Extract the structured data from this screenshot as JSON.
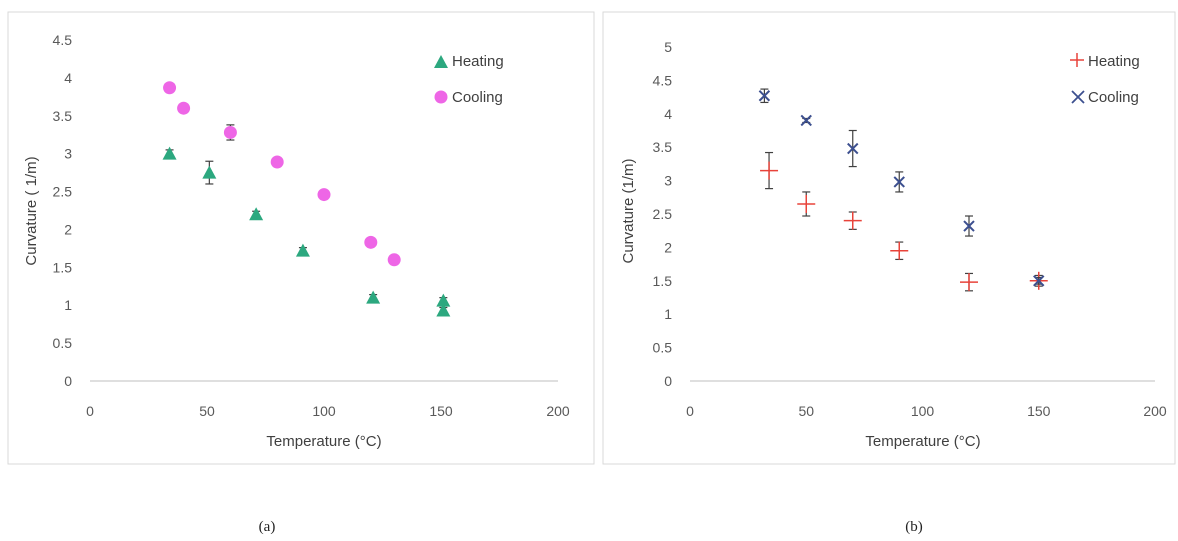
{
  "chart_data": [
    {
      "type": "scatter",
      "caption": "(a)",
      "xlabel": "Temperature (°C)",
      "ylabel": "Curvature ( 1/m)",
      "xlim": [
        0,
        200
      ],
      "ylim": [
        0,
        4.5
      ],
      "xticks": [
        0,
        50,
        100,
        150,
        200
      ],
      "yticks": [
        0,
        0.5,
        1,
        1.5,
        2,
        2.5,
        3,
        3.5,
        4,
        4.5
      ],
      "ytick_labels": [
        "0",
        "0.5",
        "1",
        "1.5",
        "2",
        "2.5",
        "3",
        "3.5",
        "4",
        "4.5"
      ],
      "grid": false,
      "legend": "top-right",
      "series": [
        {
          "name": "Heating",
          "marker": "triangle",
          "color": "#2ca87f",
          "points": [
            {
              "x": 34,
              "y": 3.0,
              "err": 0.05
            },
            {
              "x": 51,
              "y": 2.75,
              "err": 0.15
            },
            {
              "x": 71,
              "y": 2.2,
              "err": 0.04
            },
            {
              "x": 91,
              "y": 1.72,
              "err": 0.04
            },
            {
              "x": 121,
              "y": 1.1,
              "err": 0.04
            },
            {
              "x": 151,
              "y": 1.06,
              "err": 0.04
            },
            {
              "x": 151,
              "y": 0.93,
              "err": 0.04
            }
          ]
        },
        {
          "name": "Cooling",
          "marker": "circle",
          "color": "#ee66e6",
          "points": [
            {
              "x": 34,
              "y": 3.87,
              "err": 0
            },
            {
              "x": 40,
              "y": 3.6,
              "err": 0
            },
            {
              "x": 60,
              "y": 3.28,
              "err": 0.1
            },
            {
              "x": 80,
              "y": 2.89,
              "err": 0
            },
            {
              "x": 100,
              "y": 2.46,
              "err": 0
            },
            {
              "x": 120,
              "y": 1.83,
              "err": 0
            },
            {
              "x": 130,
              "y": 1.6,
              "err": 0
            }
          ]
        }
      ]
    },
    {
      "type": "scatter",
      "caption": "(b)",
      "xlabel": "Temperature (°C)",
      "ylabel": "Curvature (1/m)",
      "xlim": [
        0,
        200
      ],
      "ylim": [
        0,
        5
      ],
      "xticks": [
        0,
        50,
        100,
        150,
        200
      ],
      "yticks": [
        0,
        0.5,
        1,
        1.5,
        2,
        2.5,
        3,
        3.5,
        4,
        4.5,
        5
      ],
      "ytick_labels": [
        "0",
        "0.5",
        "1",
        "1.5",
        "2",
        "2.5",
        "3",
        "3.5",
        "4",
        "4.5",
        "5"
      ],
      "grid": false,
      "legend": "top-right",
      "series": [
        {
          "name": "Heating",
          "marker": "plus",
          "color": "#e8433a",
          "points": [
            {
              "x": 34,
              "y": 3.15,
              "err": 0.27
            },
            {
              "x": 50,
              "y": 2.65,
              "err": 0.18
            },
            {
              "x": 70,
              "y": 2.4,
              "err": 0.13
            },
            {
              "x": 90,
              "y": 1.95,
              "err": 0.13
            },
            {
              "x": 120,
              "y": 1.48,
              "err": 0.13
            },
            {
              "x": 150,
              "y": 1.5,
              "err": 0.08
            }
          ]
        },
        {
          "name": "Cooling",
          "marker": "x",
          "color": "#3c4f8f",
          "points": [
            {
              "x": 32,
              "y": 4.27,
              "err": 0.1
            },
            {
              "x": 50,
              "y": 3.9,
              "err": 0.03
            },
            {
              "x": 70,
              "y": 3.48,
              "err": 0.27
            },
            {
              "x": 90,
              "y": 2.98,
              "err": 0.15
            },
            {
              "x": 120,
              "y": 2.32,
              "err": 0.15
            },
            {
              "x": 150,
              "y": 1.5,
              "err": 0.05
            }
          ]
        }
      ]
    }
  ]
}
